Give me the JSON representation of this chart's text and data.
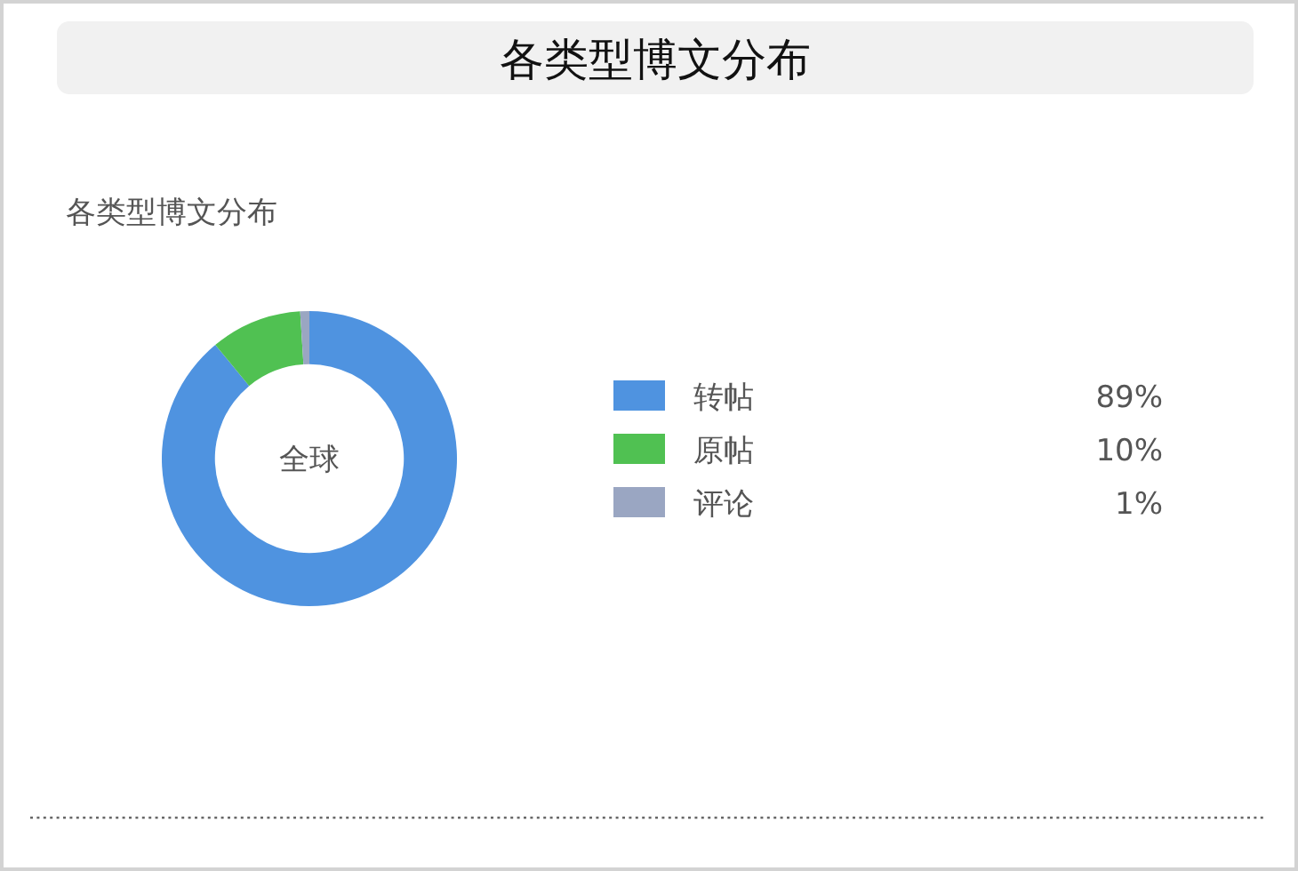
{
  "chart_data": {
    "type": "donut",
    "title": "各类型博文分布",
    "subtitle": "各类型博文分布",
    "categories": [
      "转帖",
      "原帖",
      "评论"
    ],
    "values": [
      89,
      10,
      1
    ],
    "colors": [
      "#4f93e0",
      "#50c152",
      "#9aa6c2"
    ],
    "value_labels": [
      "89%",
      "10%",
      "1%"
    ],
    "annotations": [
      "全球"
    ],
    "legend": "right"
  }
}
